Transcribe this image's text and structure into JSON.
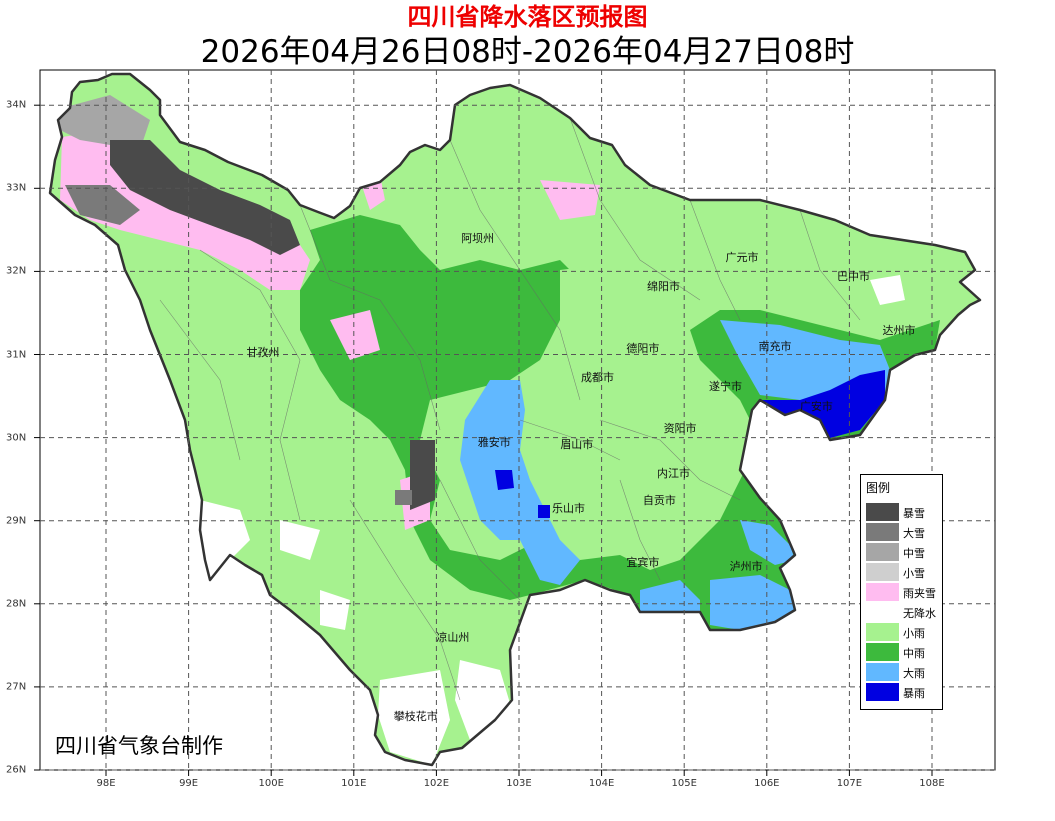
{
  "header": {
    "title": "四川省降水落区预报图",
    "period": "2026年04月26日08时-2026年04月27日08时"
  },
  "credit": "四川省气象台制作",
  "axes": {
    "x_ticks": [
      "98E",
      "99E",
      "100E",
      "101E",
      "102E",
      "103E",
      "104E",
      "105E",
      "106E",
      "107E",
      "108E"
    ],
    "y_ticks": [
      "34N",
      "33N",
      "32N",
      "31N",
      "30N",
      "29N",
      "28N",
      "27N",
      "26N"
    ]
  },
  "legend": {
    "title": "图例",
    "items": [
      {
        "label": "暴雪",
        "color": "#4a4a4a"
      },
      {
        "label": "大雪",
        "color": "#7a7a7a"
      },
      {
        "label": "中雪",
        "color": "#a6a6a6"
      },
      {
        "label": "小雪",
        "color": "#cfcfcf"
      },
      {
        "label": "雨夹雪",
        "color": "#ffbcf0"
      },
      {
        "label": "无降水",
        "color": "#ffffff"
      },
      {
        "label": "小雨",
        "color": "#a6f28f"
      },
      {
        "label": "中雨",
        "color": "#3dba3d"
      },
      {
        "label": "大雨",
        "color": "#61b8ff"
      },
      {
        "label": "暴雨",
        "color": "#0000e1"
      }
    ]
  },
  "cities": [
    {
      "name": "阿坝州",
      "lon": 102.5,
      "lat": 32.4
    },
    {
      "name": "广元市",
      "lon": 105.7,
      "lat": 32.17
    },
    {
      "name": "巴中市",
      "lon": 107.05,
      "lat": 31.95
    },
    {
      "name": "绵阳市",
      "lon": 104.75,
      "lat": 31.82
    },
    {
      "name": "达州市",
      "lon": 107.6,
      "lat": 31.3
    },
    {
      "name": "甘孜州",
      "lon": 99.9,
      "lat": 31.03
    },
    {
      "name": "德阳市",
      "lon": 104.5,
      "lat": 31.08
    },
    {
      "name": "南充市",
      "lon": 106.1,
      "lat": 31.1
    },
    {
      "name": "成都市",
      "lon": 103.95,
      "lat": 30.73
    },
    {
      "name": "遂宁市",
      "lon": 105.5,
      "lat": 30.62
    },
    {
      "name": "资阳市",
      "lon": 104.95,
      "lat": 30.12
    },
    {
      "name": "广安市",
      "lon": 106.6,
      "lat": 30.38
    },
    {
      "name": "雅安市",
      "lon": 102.7,
      "lat": 29.95
    },
    {
      "name": "眉山市",
      "lon": 103.7,
      "lat": 29.92
    },
    {
      "name": "内江市",
      "lon": 104.87,
      "lat": 29.57
    },
    {
      "name": "乐山市",
      "lon": 103.6,
      "lat": 29.15
    },
    {
      "name": "自贡市",
      "lon": 104.7,
      "lat": 29.25
    },
    {
      "name": "宜宾市",
      "lon": 104.5,
      "lat": 28.5
    },
    {
      "name": "泸州市",
      "lon": 105.75,
      "lat": 28.45
    },
    {
      "name": "凉山州",
      "lon": 102.2,
      "lat": 27.6
    },
    {
      "name": "攀枝花市",
      "lon": 101.75,
      "lat": 26.65
    }
  ],
  "colors": {
    "frame": "#000000",
    "grid": "#555555"
  }
}
